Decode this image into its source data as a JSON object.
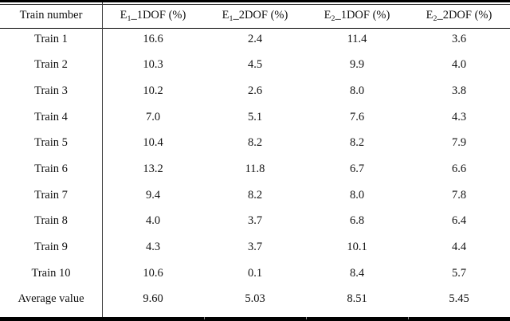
{
  "table": {
    "columns": [
      {
        "label": "Train number"
      },
      {
        "pre": "E",
        "sub": "1",
        "post": "_1DOF (%)"
      },
      {
        "pre": "E",
        "sub": "1",
        "post": "_2DOF (%)"
      },
      {
        "pre": "E",
        "sub": "2",
        "post": "_1DOF (%)"
      },
      {
        "pre": "E",
        "sub": "2",
        "post": "_2DOF (%)"
      }
    ],
    "rows": [
      {
        "label": "Train 1",
        "values": [
          "16.6",
          "2.4",
          "11.4",
          "3.6"
        ]
      },
      {
        "label": "Train 2",
        "values": [
          "10.3",
          "4.5",
          "9.9",
          "4.0"
        ]
      },
      {
        "label": "Train 3",
        "values": [
          "10.2",
          "2.6",
          "8.0",
          "3.8"
        ]
      },
      {
        "label": "Train 4",
        "values": [
          "7.0",
          "5.1",
          "7.6",
          "4.3"
        ]
      },
      {
        "label": "Train 5",
        "values": [
          "10.4",
          "8.2",
          "8.2",
          "7.9"
        ]
      },
      {
        "label": "Train 6",
        "values": [
          "13.2",
          "11.8",
          "6.7",
          "6.6"
        ]
      },
      {
        "label": "Train 7",
        "values": [
          "9.4",
          "8.2",
          "8.0",
          "7.8"
        ]
      },
      {
        "label": "Train 8",
        "values": [
          "4.0",
          "3.7",
          "6.8",
          "6.4"
        ]
      },
      {
        "label": "Train 9",
        "values": [
          "4.3",
          "3.7",
          "10.1",
          "4.4"
        ]
      },
      {
        "label": "Train 10",
        "values": [
          "10.6",
          "0.1",
          "8.4",
          "5.7"
        ]
      },
      {
        "label": "Average value",
        "values": [
          "9.60",
          "5.03",
          "8.51",
          "5.45"
        ]
      }
    ]
  },
  "colors": {
    "text": "#111111",
    "rule": "#000000",
    "divider": "#3c3c3c"
  },
  "chart_data": {
    "type": "table",
    "title": "",
    "categories": [
      "Train 1",
      "Train 2",
      "Train 3",
      "Train 4",
      "Train 5",
      "Train 6",
      "Train 7",
      "Train 8",
      "Train 9",
      "Train 10",
      "Average value"
    ],
    "series": [
      {
        "name": "E1_1DOF (%)",
        "values": [
          16.6,
          10.3,
          10.2,
          7.0,
          10.4,
          13.2,
          9.4,
          4.0,
          4.3,
          10.6,
          9.6
        ]
      },
      {
        "name": "E1_2DOF (%)",
        "values": [
          2.4,
          4.5,
          2.6,
          5.1,
          8.2,
          11.8,
          8.2,
          3.7,
          3.7,
          0.1,
          5.03
        ]
      },
      {
        "name": "E2_1DOF (%)",
        "values": [
          11.4,
          9.9,
          8.0,
          7.6,
          8.2,
          6.7,
          8.0,
          6.8,
          10.1,
          8.4,
          8.51
        ]
      },
      {
        "name": "E2_2DOF (%)",
        "values": [
          3.6,
          4.0,
          3.8,
          4.3,
          7.9,
          6.6,
          7.8,
          6.4,
          4.4,
          5.7,
          5.45
        ]
      }
    ]
  }
}
